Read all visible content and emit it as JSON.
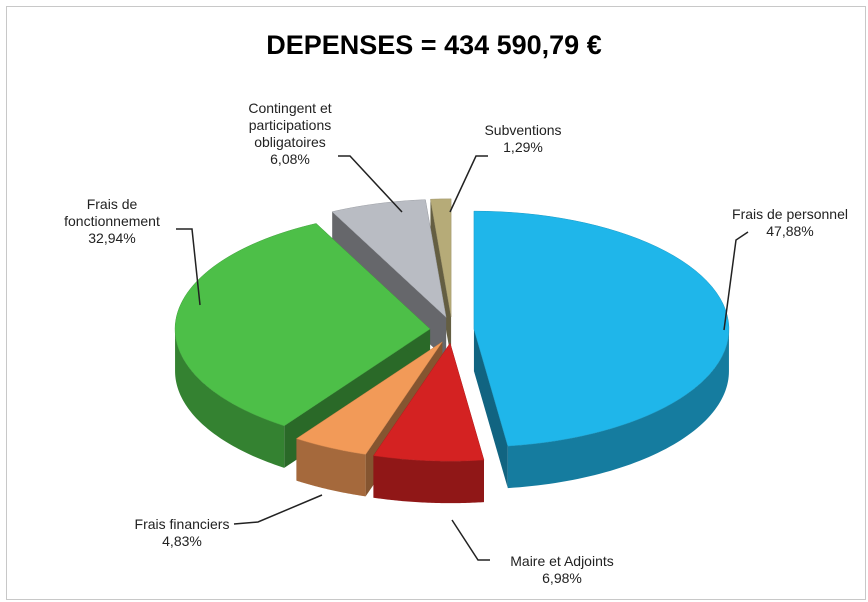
{
  "chart_data": {
    "type": "pie",
    "title": "DEPENSES = 434 590,79 €",
    "categories": [
      "Frais de personnel",
      "Maire et Adjoints",
      "Frais financiers",
      "Frais de fonctionnement",
      "Contingent et participations obligatoires",
      "Subventions"
    ],
    "values": [
      47.88,
      6.98,
      4.83,
      32.94,
      6.08,
      1.29
    ],
    "value_labels": [
      "47,88%",
      "6,98%",
      "4,83%",
      "32,94%",
      "6,08%",
      "1,29%"
    ],
    "colors": [
      "#1fb6ea",
      "#d42222",
      "#f29a58",
      "#4dbf48",
      "#b9bcc3",
      "#b6ab78"
    ]
  }
}
